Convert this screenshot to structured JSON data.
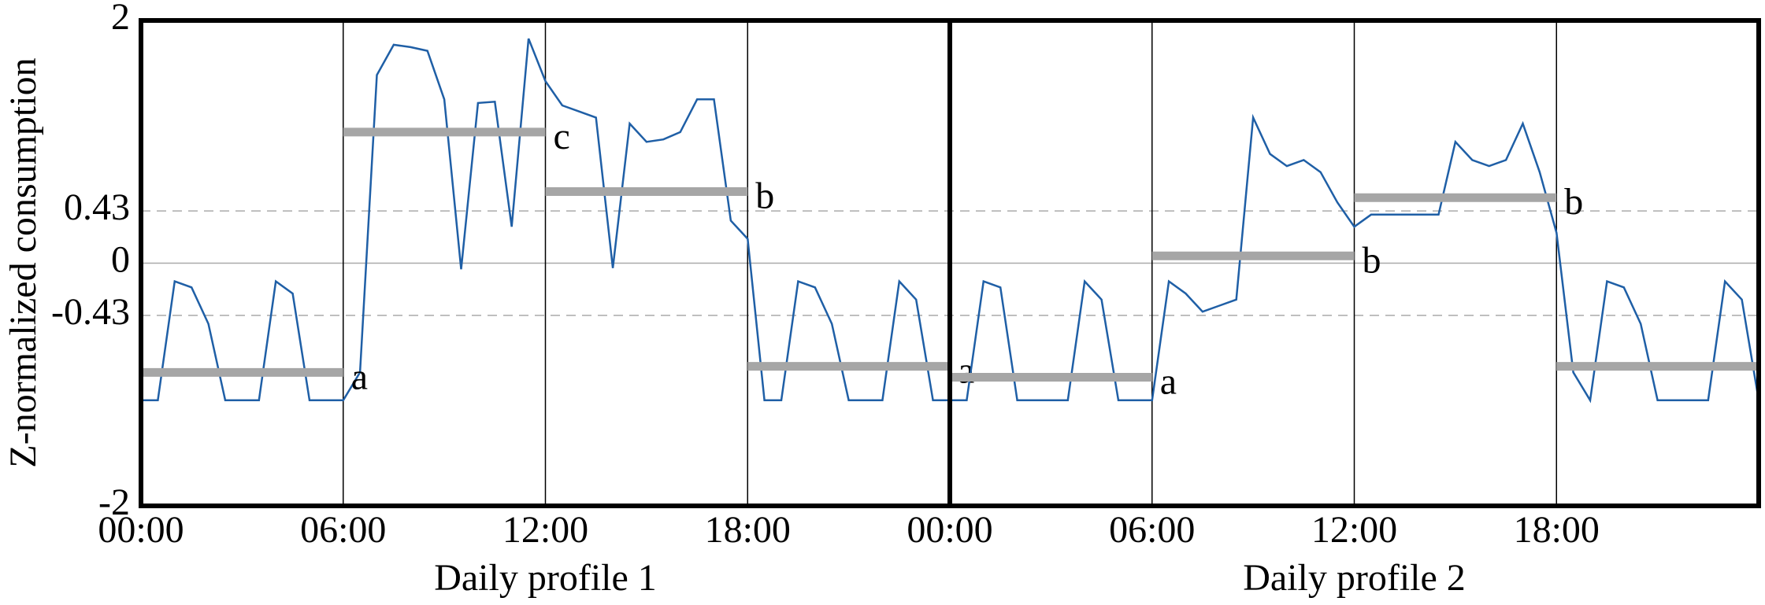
{
  "chart_data": {
    "type": "line",
    "ylabel": "Z-normalized consumption",
    "ylim": [
      -2,
      2
    ],
    "yticks": [
      -2,
      -0.43,
      0,
      0.43,
      2
    ],
    "segment_color": "#a6a6a6",
    "profiles": [
      {
        "xlabel": "Daily profile 1",
        "xlim": [
          0,
          24
        ],
        "xticks": [
          {
            "value": 0,
            "label": "00:00"
          },
          {
            "value": 6,
            "label": "06:00"
          },
          {
            "value": 12,
            "label": "12:00"
          },
          {
            "value": 18,
            "label": "18:00"
          }
        ],
        "x": [
          0,
          0.5,
          1,
          1.5,
          2,
          2.5,
          3,
          3.5,
          4,
          4.5,
          5,
          5.5,
          6,
          6.5,
          7,
          7.5,
          8,
          8.5,
          9,
          9.5,
          10,
          10.5,
          11,
          11.5,
          12,
          12.5,
          13,
          13.5,
          14,
          14.5,
          15,
          15.5,
          16,
          16.5,
          17,
          17.5,
          18,
          18.5,
          19,
          19.5,
          20,
          20.5,
          21,
          21.5,
          22,
          22.5,
          23,
          23.5,
          24
        ],
        "series": [
          {
            "color": "#1f5fa6",
            "values": [
              -1.13,
              -1.13,
              -0.15,
              -0.2,
              -0.5,
              -1.13,
              -1.13,
              -1.13,
              -0.15,
              -0.25,
              -1.13,
              -1.13,
              -1.13,
              -0.9,
              1.55,
              1.8,
              1.78,
              1.75,
              1.35,
              -0.05,
              1.32,
              1.33,
              0.3,
              1.85,
              1.5,
              1.3,
              1.25,
              1.2,
              -0.04,
              1.15,
              1.0,
              1.02,
              1.08,
              1.35,
              1.35,
              0.35,
              0.2,
              -1.13,
              -1.13,
              -0.15,
              -0.2,
              -0.5,
              -1.13,
              -1.13,
              -1.13,
              -0.15,
              -0.3,
              -1.13,
              -1.13
            ]
          }
        ],
        "segments": [
          {
            "x": [
              0,
              6
            ],
            "value": -0.9,
            "label": "a"
          },
          {
            "x": [
              6,
              12
            ],
            "value": 1.08,
            "label": "c"
          },
          {
            "x": [
              12,
              18
            ],
            "value": 0.59,
            "label": "b"
          },
          {
            "x": [
              18,
              24
            ],
            "value": -0.85,
            "label": "a"
          }
        ]
      },
      {
        "xlabel": "Daily profile 2",
        "xlim": [
          0,
          24
        ],
        "xticks": [
          {
            "value": 0,
            "label": "00:00"
          },
          {
            "value": 6,
            "label": "06:00"
          },
          {
            "value": 12,
            "label": "12:00"
          },
          {
            "value": 18,
            "label": "18:00"
          }
        ],
        "x": [
          0,
          0.5,
          1,
          1.5,
          2,
          2.5,
          3,
          3.5,
          4,
          4.5,
          5,
          5.5,
          6,
          6.5,
          7,
          7.5,
          8,
          8.5,
          9,
          9.5,
          10,
          10.5,
          11,
          11.5,
          12,
          12.5,
          13,
          13.5,
          14,
          14.5,
          15,
          15.5,
          16,
          16.5,
          17,
          17.5,
          18,
          18.5,
          19,
          19.5,
          20,
          20.5,
          21,
          21.5,
          22,
          22.5,
          23,
          23.5,
          24
        ],
        "series": [
          {
            "color": "#1f5fa6",
            "values": [
              -1.13,
              -1.13,
              -0.15,
              -0.2,
              -1.13,
              -1.13,
              -1.13,
              -1.13,
              -0.15,
              -0.3,
              -1.13,
              -1.13,
              -1.13,
              -0.15,
              -0.25,
              -0.4,
              -0.35,
              -0.3,
              1.2,
              0.9,
              0.8,
              0.85,
              0.75,
              0.5,
              0.3,
              0.4,
              0.4,
              0.4,
              0.4,
              0.4,
              1.0,
              0.85,
              0.8,
              0.85,
              1.15,
              0.75,
              0.25,
              -0.9,
              -1.13,
              -0.15,
              -0.2,
              -0.5,
              -1.13,
              -1.13,
              -1.13,
              -1.13,
              -0.15,
              -0.3,
              -1.13
            ]
          }
        ],
        "segments": [
          {
            "x": [
              0,
              6
            ],
            "value": -0.94,
            "label": "a"
          },
          {
            "x": [
              6,
              12
            ],
            "value": 0.06,
            "label": "b"
          },
          {
            "x": [
              12,
              18
            ],
            "value": 0.54,
            "label": "b"
          },
          {
            "x": [
              18,
              24
            ],
            "value": -0.85,
            "label": "a"
          }
        ]
      }
    ]
  }
}
